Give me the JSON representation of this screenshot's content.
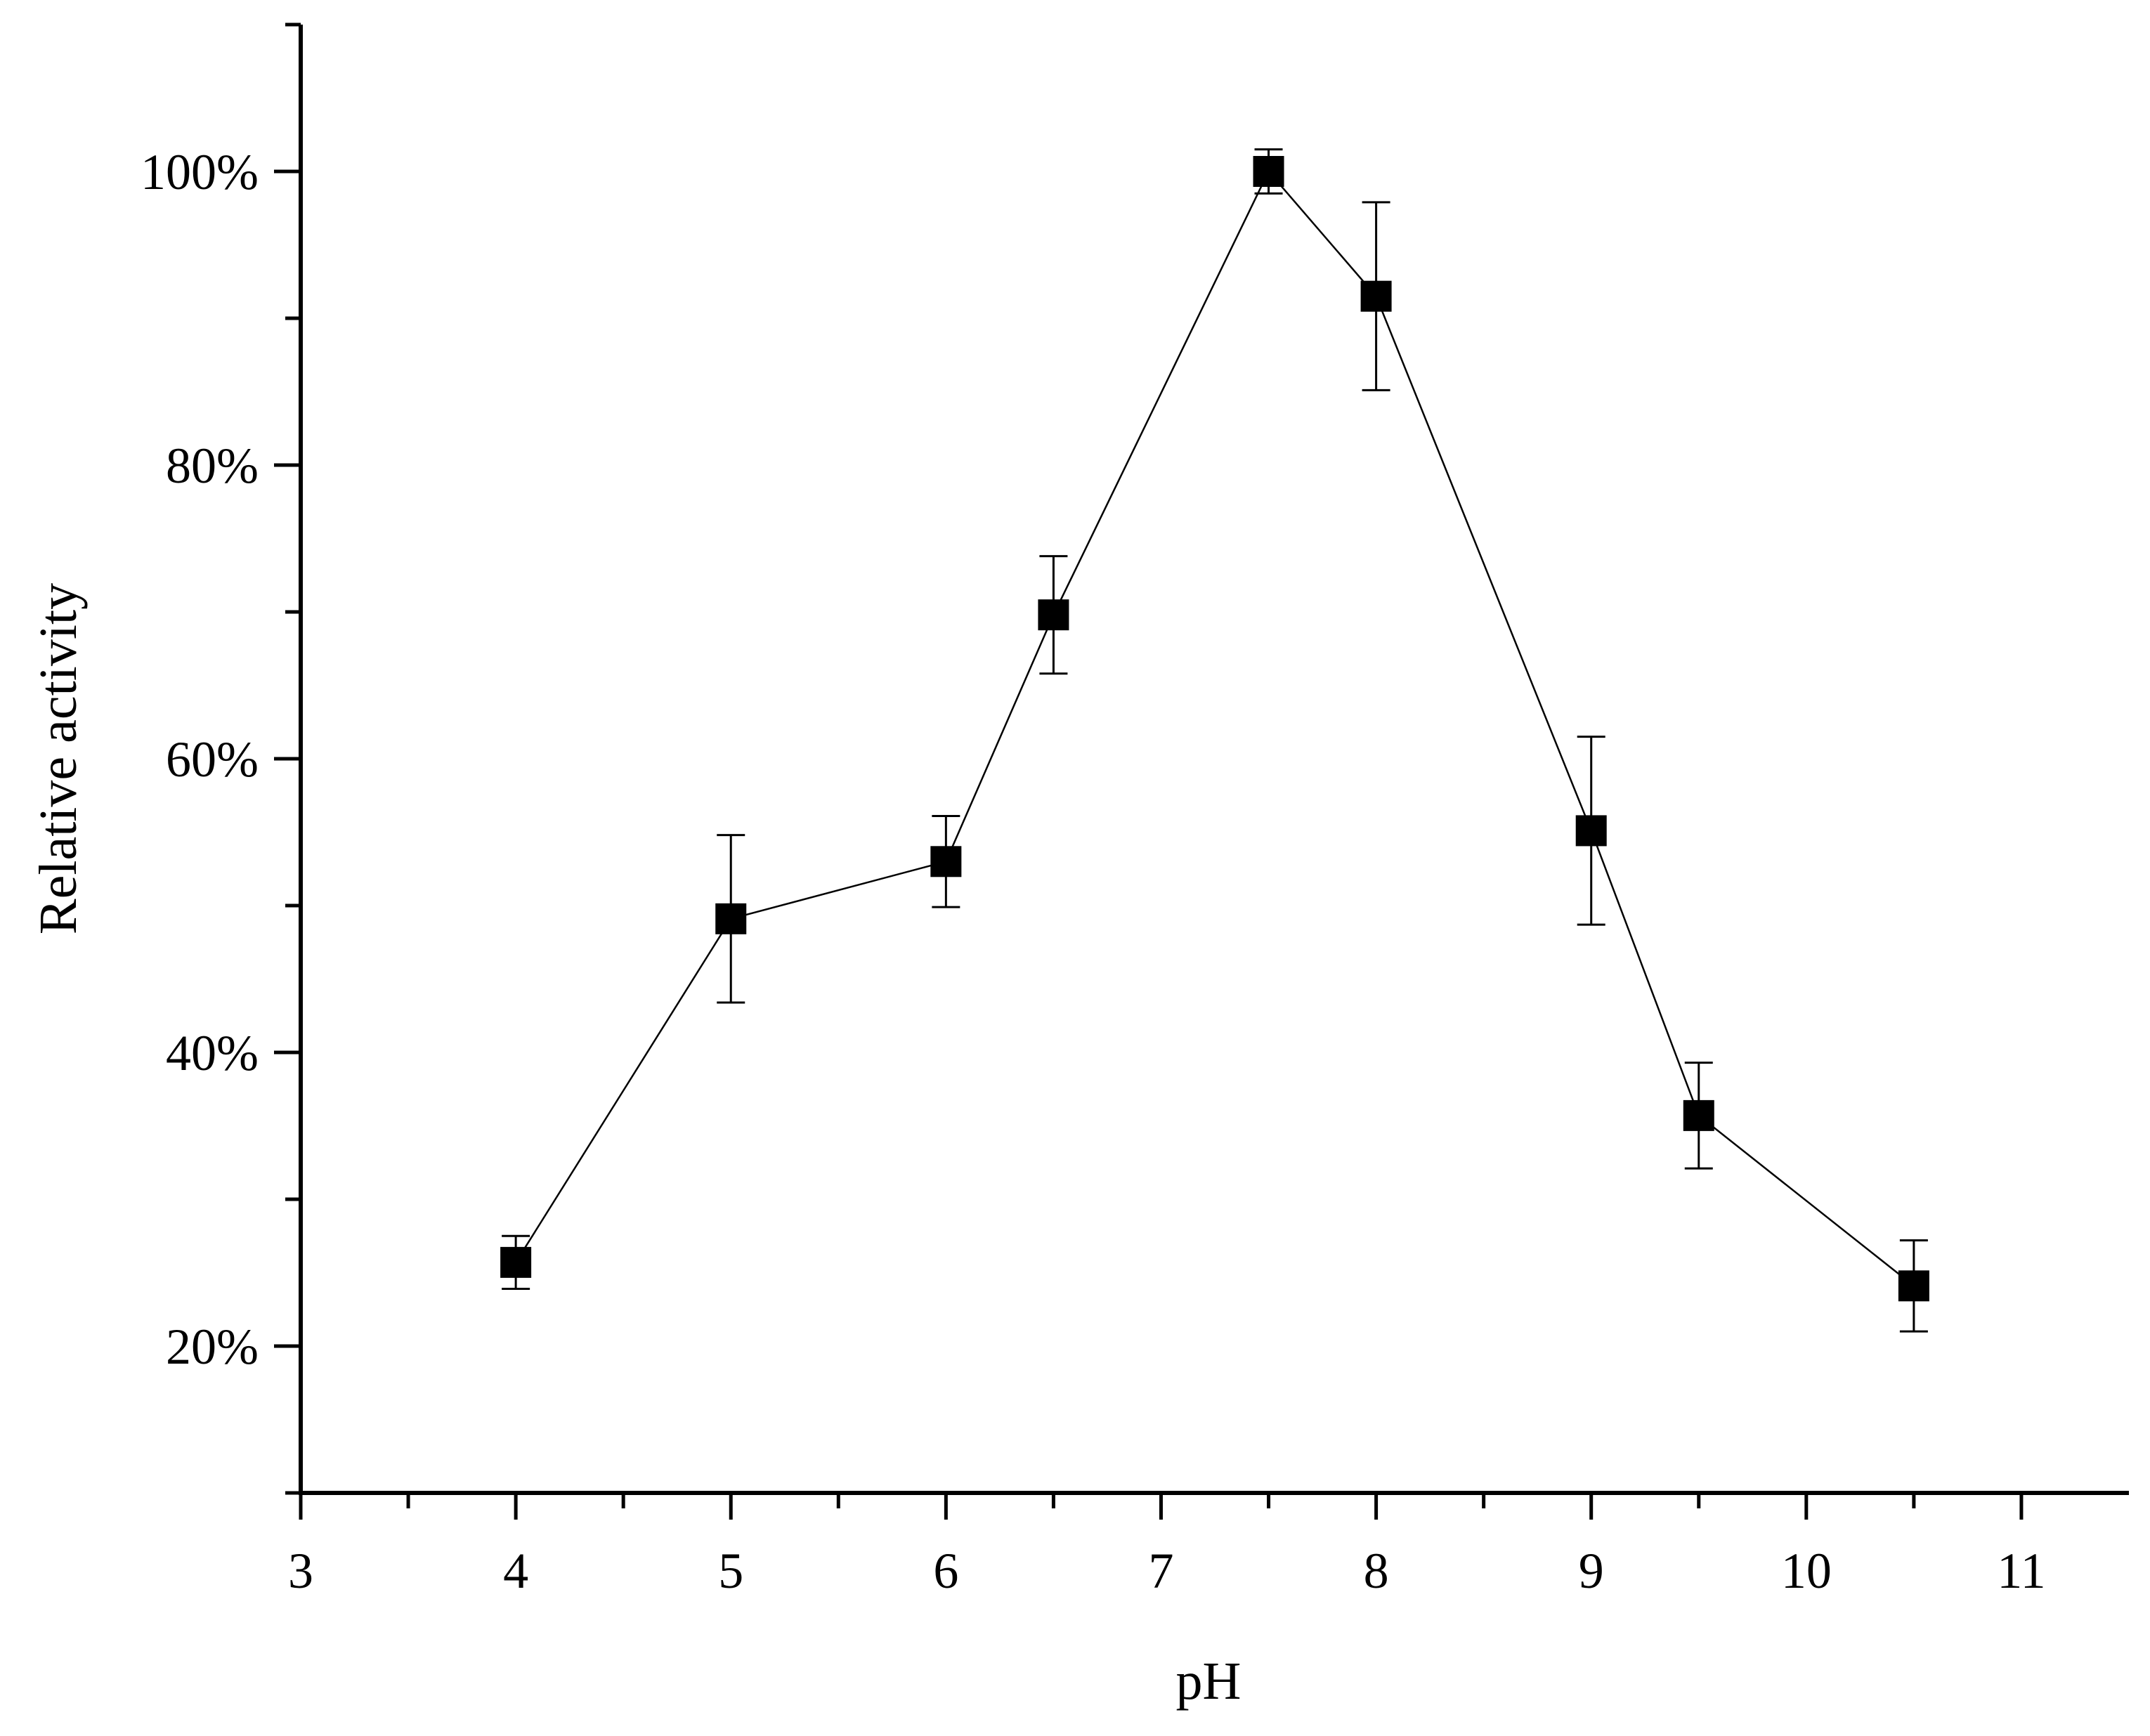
{
  "chart_data": {
    "type": "line",
    "title": "",
    "xlabel": "pH",
    "ylabel": "Relative activity",
    "xlim": [
      3,
      11.5
    ],
    "ylim": [
      10,
      110
    ],
    "x_ticks": [
      3,
      4,
      5,
      6,
      7,
      8,
      9,
      10,
      11
    ],
    "x_minor_ticks": [
      3.5,
      4.5,
      5.5,
      6.5,
      7.5,
      8.5,
      9.5,
      10.5
    ],
    "y_ticks": [
      20,
      40,
      60,
      80,
      100
    ],
    "y_tick_labels": [
      "20%",
      "40%",
      "60%",
      "80%",
      "100%"
    ],
    "y_minor_ticks": [
      10,
      30,
      50,
      70,
      90,
      110
    ],
    "grid": false,
    "legend": "none",
    "series": [
      {
        "x": [
          4,
          5,
          6,
          6.5,
          7.5,
          8,
          9,
          9.5,
          10.5
        ],
        "y": [
          25.7,
          49.1,
          53.0,
          69.8,
          100.0,
          91.5,
          55.1,
          35.7,
          24.1
        ],
        "error": [
          1.8,
          5.7,
          3.1,
          4.0,
          1.5,
          6.4,
          6.4,
          3.6,
          3.1
        ],
        "marker": "square",
        "color": "#000000"
      }
    ]
  }
}
